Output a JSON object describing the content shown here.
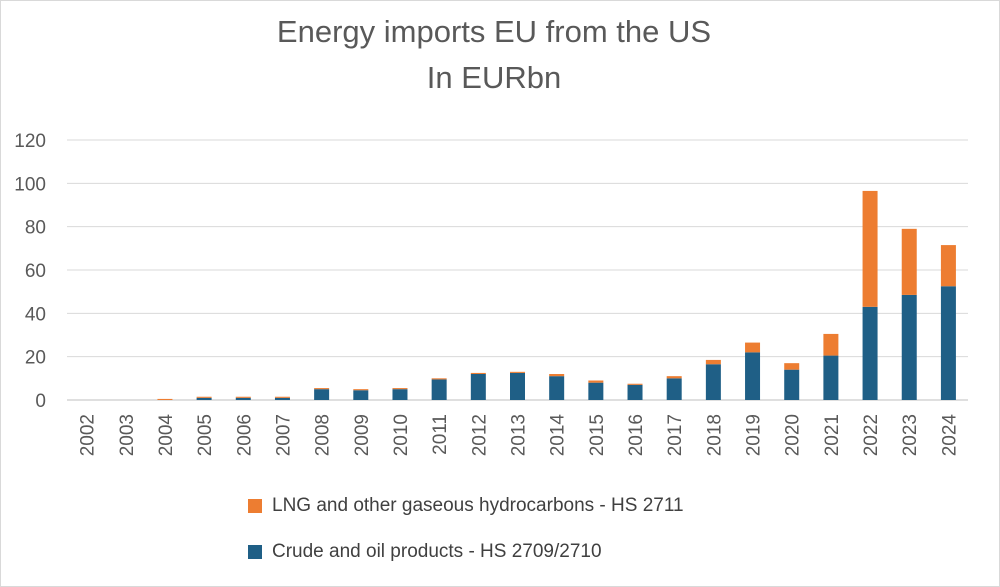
{
  "chart_data": {
    "type": "bar",
    "stacked": true,
    "title": "Energy imports EU from the US",
    "subtitle": "In EURbn",
    "categories": [
      "2002",
      "2003",
      "2004",
      "2005",
      "2006",
      "2007",
      "2008",
      "2009",
      "2010",
      "2011",
      "2012",
      "2013",
      "2014",
      "2015",
      "2016",
      "2017",
      "2018",
      "2019",
      "2020",
      "2021",
      "2022",
      "2023",
      "2024"
    ],
    "series": [
      {
        "name": "Crude and oil products - HS 2709/2710",
        "color": "#1f5f86",
        "values": [
          0,
          0,
          0,
          1,
          1,
          1,
          5,
          4.5,
          5,
          9.5,
          12,
          12.5,
          11,
          8,
          7,
          10,
          16.5,
          22,
          14,
          20.5,
          43,
          48.5,
          52.5
        ]
      },
      {
        "name": "LNG and other gaseous hydrocarbons - HS 2711",
        "color": "#ed7d31",
        "values": [
          0,
          0,
          0.5,
          0.5,
          0.5,
          0.5,
          0.5,
          0.5,
          0.5,
          0.5,
          0.5,
          0.5,
          1,
          1,
          0.5,
          1,
          2,
          4.5,
          3,
          10,
          53.5,
          30.5,
          19
        ]
      }
    ],
    "ylim": [
      0,
      120
    ],
    "yticks": [
      0,
      20,
      40,
      60,
      80,
      100,
      120
    ],
    "xlabel": "",
    "ylabel": "",
    "grid": true,
    "legend_position": "bottom"
  }
}
